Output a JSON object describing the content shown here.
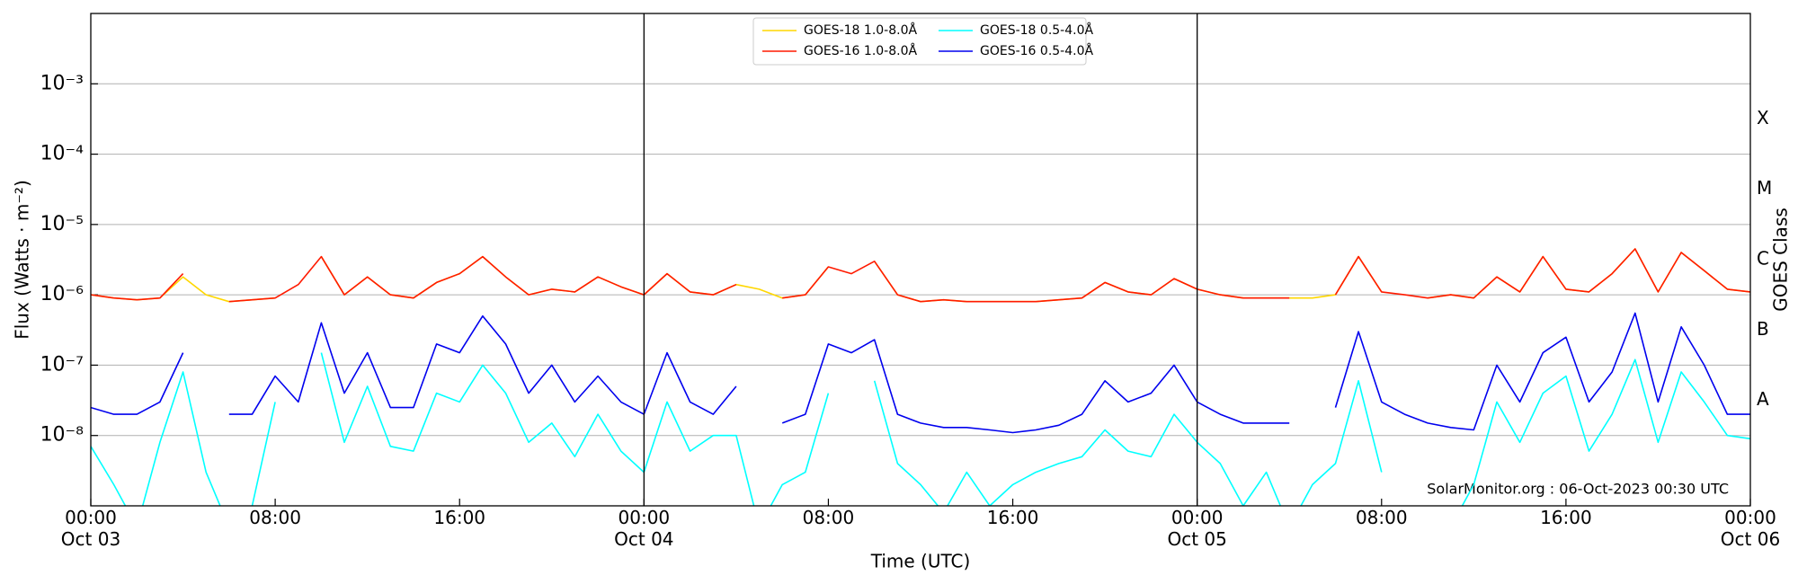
{
  "chart_data": {
    "type": "line",
    "xlabel": "Time (UTC)",
    "ylabel": "Flux (Watts · m⁻²)",
    "y2label": "GOES Class",
    "annotation": "SolarMonitor.org : 06-Oct-2023 00:30 UTC",
    "log_y": true,
    "grid": true,
    "legend": "upper center",
    "x": [
      "Oct 03 00:00",
      "Oct 03 01:00",
      "Oct 03 02:00",
      "Oct 03 03:00",
      "Oct 03 04:00",
      "Oct 03 05:00",
      "Oct 03 06:00",
      "Oct 03 07:00",
      "Oct 03 08:00",
      "Oct 03 09:00",
      "Oct 03 10:00",
      "Oct 03 11:00",
      "Oct 03 12:00",
      "Oct 03 13:00",
      "Oct 03 14:00",
      "Oct 03 15:00",
      "Oct 03 16:00",
      "Oct 03 17:00",
      "Oct 03 18:00",
      "Oct 03 19:00",
      "Oct 03 20:00",
      "Oct 03 21:00",
      "Oct 03 22:00",
      "Oct 03 23:00",
      "Oct 04 00:00",
      "Oct 04 01:00",
      "Oct 04 02:00",
      "Oct 04 03:00",
      "Oct 04 04:00",
      "Oct 04 05:00",
      "Oct 04 06:00",
      "Oct 04 07:00",
      "Oct 04 08:00",
      "Oct 04 09:00",
      "Oct 04 10:00",
      "Oct 04 11:00",
      "Oct 04 12:00",
      "Oct 04 13:00",
      "Oct 04 14:00",
      "Oct 04 15:00",
      "Oct 04 16:00",
      "Oct 04 17:00",
      "Oct 04 18:00",
      "Oct 04 19:00",
      "Oct 04 20:00",
      "Oct 04 21:00",
      "Oct 04 22:00",
      "Oct 04 23:00",
      "Oct 05 00:00",
      "Oct 05 01:00",
      "Oct 05 02:00",
      "Oct 05 03:00",
      "Oct 05 04:00",
      "Oct 05 05:00",
      "Oct 05 06:00",
      "Oct 05 07:00",
      "Oct 05 08:00",
      "Oct 05 09:00",
      "Oct 05 10:00",
      "Oct 05 11:00",
      "Oct 05 12:00",
      "Oct 05 13:00",
      "Oct 05 14:00",
      "Oct 05 15:00",
      "Oct 05 16:00",
      "Oct 05 17:00",
      "Oct 05 18:00",
      "Oct 05 19:00",
      "Oct 05 20:00",
      "Oct 05 21:00",
      "Oct 05 22:00",
      "Oct 05 23:00",
      "Oct 06 00:00"
    ],
    "xlim": [
      "Oct 03 00:00",
      "Oct 06 00:00"
    ],
    "xticks": [
      {
        "value": "Oct 03 00:00",
        "label": "00:00\nOct 03"
      },
      {
        "value": "Oct 03 08:00",
        "label": "08:00"
      },
      {
        "value": "Oct 03 16:00",
        "label": "16:00"
      },
      {
        "value": "Oct 04 00:00",
        "label": "00:00\nOct 04"
      },
      {
        "value": "Oct 04 08:00",
        "label": "08:00"
      },
      {
        "value": "Oct 04 16:00",
        "label": "16:00"
      },
      {
        "value": "Oct 05 00:00",
        "label": "00:00\nOct 05"
      },
      {
        "value": "Oct 05 08:00",
        "label": "08:00"
      },
      {
        "value": "Oct 05 16:00",
        "label": "16:00"
      },
      {
        "value": "Oct 06 00:00",
        "label": "00:00\nOct 06"
      }
    ],
    "day_lines": [
      "Oct 04 00:00",
      "Oct 05 00:00"
    ],
    "ylim": [
      1e-09,
      0.01
    ],
    "yticks": [
      {
        "value": 1e-08,
        "label": "10⁻⁸"
      },
      {
        "value": 1e-07,
        "label": "10⁻⁷"
      },
      {
        "value": 1e-06,
        "label": "10⁻⁶"
      },
      {
        "value": 1e-05,
        "label": "10⁻⁵"
      },
      {
        "value": 0.0001,
        "label": "10⁻⁴"
      },
      {
        "value": 0.001,
        "label": "10⁻³"
      }
    ],
    "class_ticks": [
      {
        "value": 3.162e-08,
        "label": "A"
      },
      {
        "value": 3.162e-07,
        "label": "B"
      },
      {
        "value": 3.162e-06,
        "label": "C"
      },
      {
        "value": 3.162e-05,
        "label": "M"
      },
      {
        "value": 0.0003162,
        "label": "X"
      }
    ],
    "series": [
      {
        "name": "GOES-18 1.0-8.0Å",
        "color": "#ffd700",
        "values": [
          1e-06,
          9e-07,
          8.5e-07,
          9e-07,
          1.8e-06,
          1e-06,
          8e-07,
          8.5e-07,
          9e-07,
          null,
          3.5e-06,
          1e-06,
          1.8e-06,
          1e-06,
          9e-07,
          1.5e-06,
          2e-06,
          3.5e-06,
          1.8e-06,
          1e-06,
          1.2e-06,
          1.1e-06,
          1.8e-06,
          1.3e-06,
          1e-06,
          2e-06,
          1.1e-06,
          1e-06,
          1.4e-06,
          1.2e-06,
          9e-07,
          1e-06,
          2.5e-06,
          null,
          3e-06,
          1e-06,
          8e-07,
          8.5e-07,
          8e-07,
          8e-07,
          8e-07,
          8e-07,
          8.5e-07,
          9e-07,
          1.5e-06,
          1.1e-06,
          1e-06,
          1.7e-06,
          1.2e-06,
          1e-06,
          9e-07,
          9e-07,
          9e-07,
          9e-07,
          1e-06,
          3.5e-06,
          1.1e-06,
          null,
          9e-07,
          1e-06,
          9e-07,
          1.8e-06,
          1.1e-06,
          3.5e-06,
          1.2e-06,
          1.1e-06,
          2e-06,
          4.5e-06,
          1.1e-06,
          4e-06,
          2.2e-06,
          1.2e-06,
          1.1e-06
        ]
      },
      {
        "name": "GOES-16 1.0-8.0Å",
        "color": "#ff1a00",
        "values": [
          1e-06,
          9e-07,
          8.5e-07,
          9e-07,
          2e-06,
          null,
          8e-07,
          8.5e-07,
          9e-07,
          1.4e-06,
          3.5e-06,
          1e-06,
          1.8e-06,
          1e-06,
          9e-07,
          1.5e-06,
          2e-06,
          3.5e-06,
          1.8e-06,
          1e-06,
          1.2e-06,
          1.1e-06,
          1.8e-06,
          1.3e-06,
          1e-06,
          2e-06,
          1.1e-06,
          1e-06,
          1.4e-06,
          null,
          9e-07,
          1e-06,
          2.5e-06,
          2e-06,
          3e-06,
          1e-06,
          8e-07,
          8.5e-07,
          8e-07,
          8e-07,
          8e-07,
          8e-07,
          8.5e-07,
          9e-07,
          1.5e-06,
          1.1e-06,
          1e-06,
          1.7e-06,
          1.2e-06,
          1e-06,
          9e-07,
          9e-07,
          9e-07,
          null,
          1e-06,
          3.5e-06,
          1.1e-06,
          1e-06,
          9e-07,
          1e-06,
          9e-07,
          1.8e-06,
          1.1e-06,
          3.5e-06,
          1.2e-06,
          1.1e-06,
          2e-06,
          4.5e-06,
          1.1e-06,
          4e-06,
          2.2e-06,
          1.2e-06,
          1.1e-06
        ]
      },
      {
        "name": "GOES-18 0.5-4.0Å",
        "color": "#00ffff",
        "values": [
          7e-09,
          2e-09,
          5e-10,
          8e-09,
          8e-08,
          3e-09,
          5e-10,
          1e-09,
          3e-08,
          null,
          1.5e-07,
          8e-09,
          5e-08,
          7e-09,
          6e-09,
          4e-08,
          3e-08,
          1e-07,
          4e-08,
          8e-09,
          1.5e-08,
          5e-09,
          2e-08,
          6e-09,
          3e-09,
          3e-08,
          6e-09,
          1e-08,
          1e-08,
          5e-10,
          2e-09,
          3e-09,
          4e-08,
          null,
          6e-08,
          4e-09,
          2e-09,
          8e-10,
          3e-09,
          1e-09,
          2e-09,
          3e-09,
          4e-09,
          5e-09,
          1.2e-08,
          6e-09,
          5e-09,
          2e-08,
          8e-09,
          4e-09,
          1e-09,
          3e-09,
          5e-10,
          2e-09,
          4e-09,
          6e-08,
          3e-09,
          null,
          1e-09,
          5e-10,
          2e-09,
          3e-08,
          8e-09,
          4e-08,
          7e-08,
          6e-09,
          2e-08,
          1.2e-07,
          8e-09,
          8e-08,
          3e-08,
          1e-08,
          9e-09
        ]
      },
      {
        "name": "GOES-16 0.5-4.0Å",
        "color": "#0000ee",
        "values": [
          2.5e-08,
          2e-08,
          2e-08,
          3e-08,
          1.5e-07,
          null,
          2e-08,
          2e-08,
          7e-08,
          3e-08,
          4e-07,
          4e-08,
          1.5e-07,
          2.5e-08,
          2.5e-08,
          2e-07,
          1.5e-07,
          5e-07,
          2e-07,
          4e-08,
          1e-07,
          3e-08,
          7e-08,
          3e-08,
          2e-08,
          1.5e-07,
          3e-08,
          2e-08,
          5e-08,
          null,
          1.5e-08,
          2e-08,
          2e-07,
          1.5e-07,
          2.3e-07,
          2e-08,
          1.5e-08,
          1.3e-08,
          1.3e-08,
          1.2e-08,
          1.1e-08,
          1.2e-08,
          1.4e-08,
          2e-08,
          6e-08,
          3e-08,
          4e-08,
          1e-07,
          3e-08,
          2e-08,
          1.5e-08,
          1.5e-08,
          1.5e-08,
          null,
          2.5e-08,
          3e-07,
          3e-08,
          2e-08,
          1.5e-08,
          1.3e-08,
          1.2e-08,
          1e-07,
          3e-08,
          1.5e-07,
          2.5e-07,
          3e-08,
          8e-08,
          5.5e-07,
          3e-08,
          3.5e-07,
          1e-07,
          2e-08,
          2e-08
        ]
      }
    ]
  }
}
